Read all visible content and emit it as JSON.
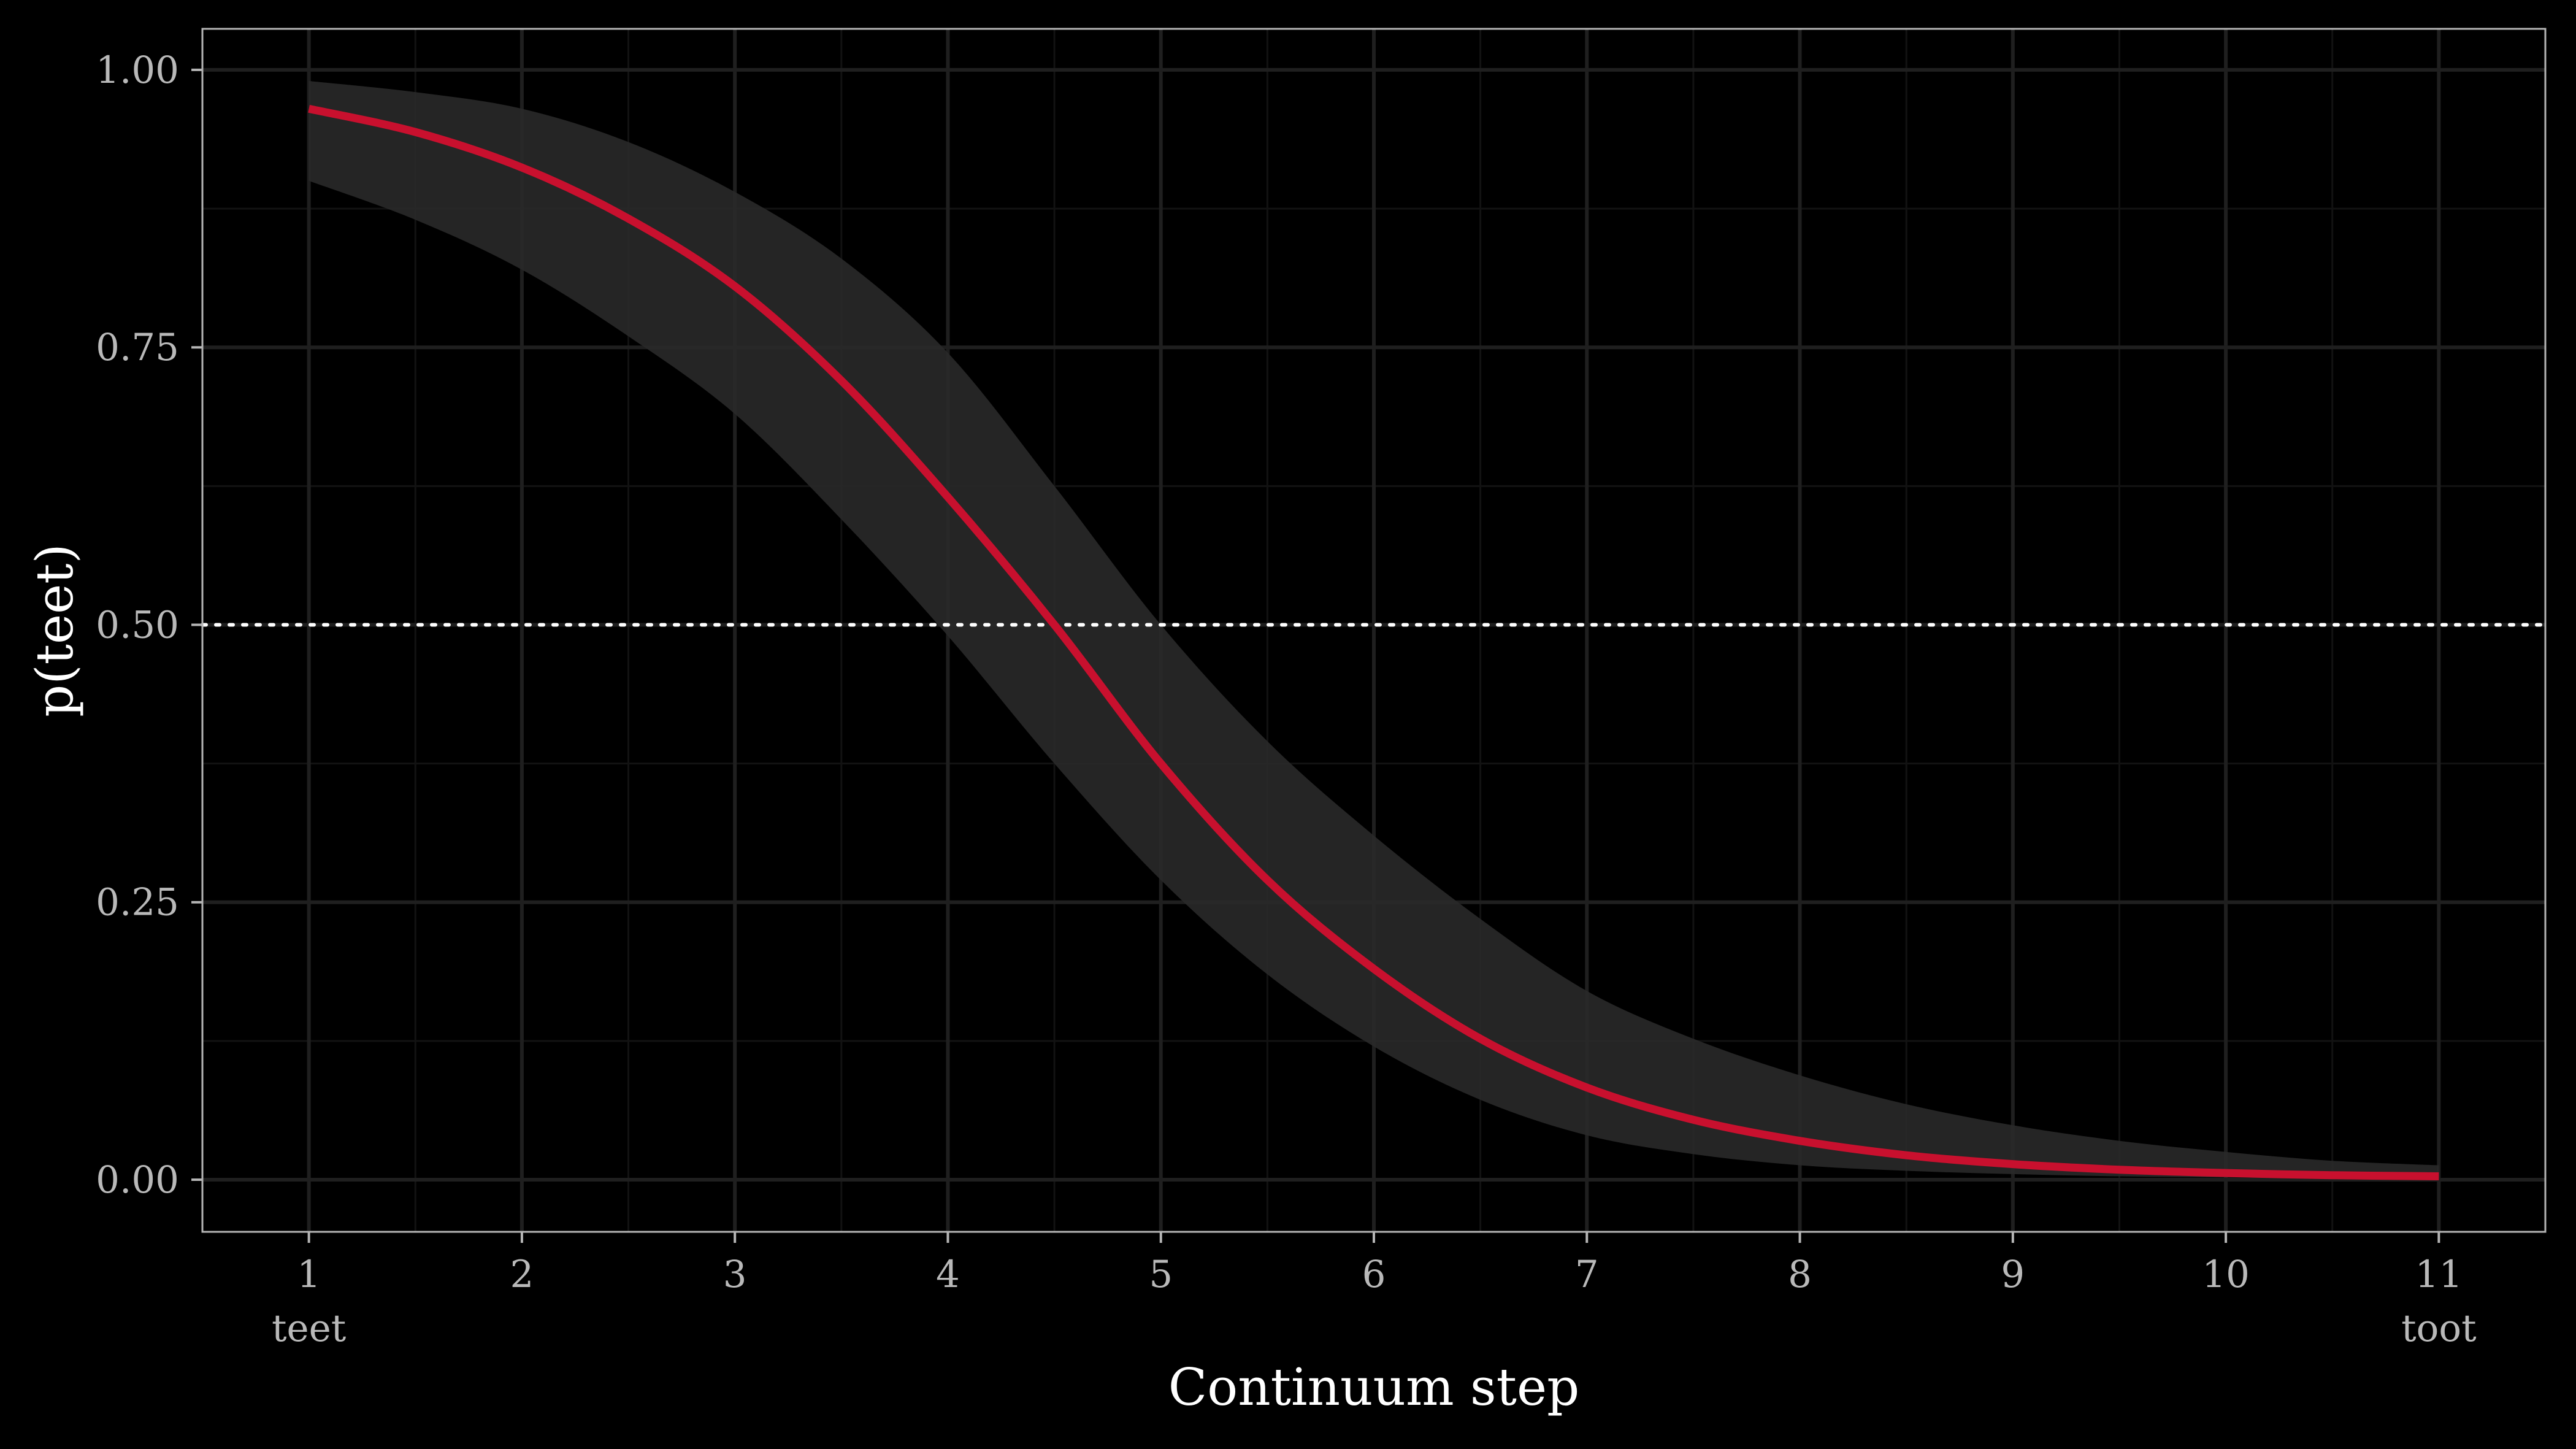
{
  "chart_data": {
    "type": "line",
    "title": "",
    "xlabel": "Continuum step",
    "ylabel": "p(teet)",
    "xlim": [
      0.5,
      11.5
    ],
    "ylim": [
      -0.047,
      1.037
    ],
    "x_ticks": [
      1,
      2,
      3,
      4,
      5,
      6,
      7,
      8,
      9,
      10,
      11
    ],
    "x_tick_labels": [
      "1",
      "2",
      "3",
      "4",
      "5",
      "6",
      "7",
      "8",
      "9",
      "10",
      "11"
    ],
    "x_endpoint_labels": [
      {
        "x": 1,
        "label": "teet"
      },
      {
        "x": 11,
        "label": "toot"
      }
    ],
    "y_ticks": [
      0,
      0.25,
      0.5,
      0.75,
      1
    ],
    "y_tick_labels": [
      "0.00",
      "0.25",
      "0.50",
      "0.75",
      "1.00"
    ],
    "grid": true,
    "reference_line": {
      "y": 0.5,
      "style": "dotted",
      "color": "#ffffff"
    },
    "series": [
      {
        "color": "#c8102e",
        "x": [
          1,
          1.5,
          2,
          2.5,
          3,
          3.5,
          4,
          4.5,
          5,
          5.5,
          6,
          6.5,
          7,
          7.5,
          8,
          8.5,
          9,
          9.5,
          10,
          10.5,
          11
        ],
        "y": [
          0.965,
          0.944,
          0.912,
          0.866,
          0.805,
          0.72,
          0.615,
          0.5,
          0.375,
          0.27,
          0.19,
          0.127,
          0.083,
          0.054,
          0.035,
          0.022,
          0.014,
          0.009,
          0.006,
          0.004,
          0.003
        ],
        "ci_lower": [
          0.9,
          0.865,
          0.82,
          0.76,
          0.69,
          0.595,
          0.49,
          0.375,
          0.27,
          0.185,
          0.12,
          0.072,
          0.04,
          0.023,
          0.013,
          0.008,
          0.005,
          0.003,
          0.002,
          0.001,
          0.0
        ],
        "ci_upper": [
          0.99,
          0.98,
          0.965,
          0.935,
          0.89,
          0.83,
          0.745,
          0.625,
          0.5,
          0.395,
          0.31,
          0.235,
          0.17,
          0.127,
          0.094,
          0.068,
          0.049,
          0.035,
          0.025,
          0.017,
          0.013
        ]
      }
    ],
    "colors": {
      "background": "#000000",
      "panel_border": "#b5b5b5",
      "grid_major": "#1f1f1f",
      "grid_minor": "#121212",
      "ribbon": "#2a2a2a",
      "tick_text": "#b9b9b9",
      "title_text": "#ffffff"
    }
  }
}
